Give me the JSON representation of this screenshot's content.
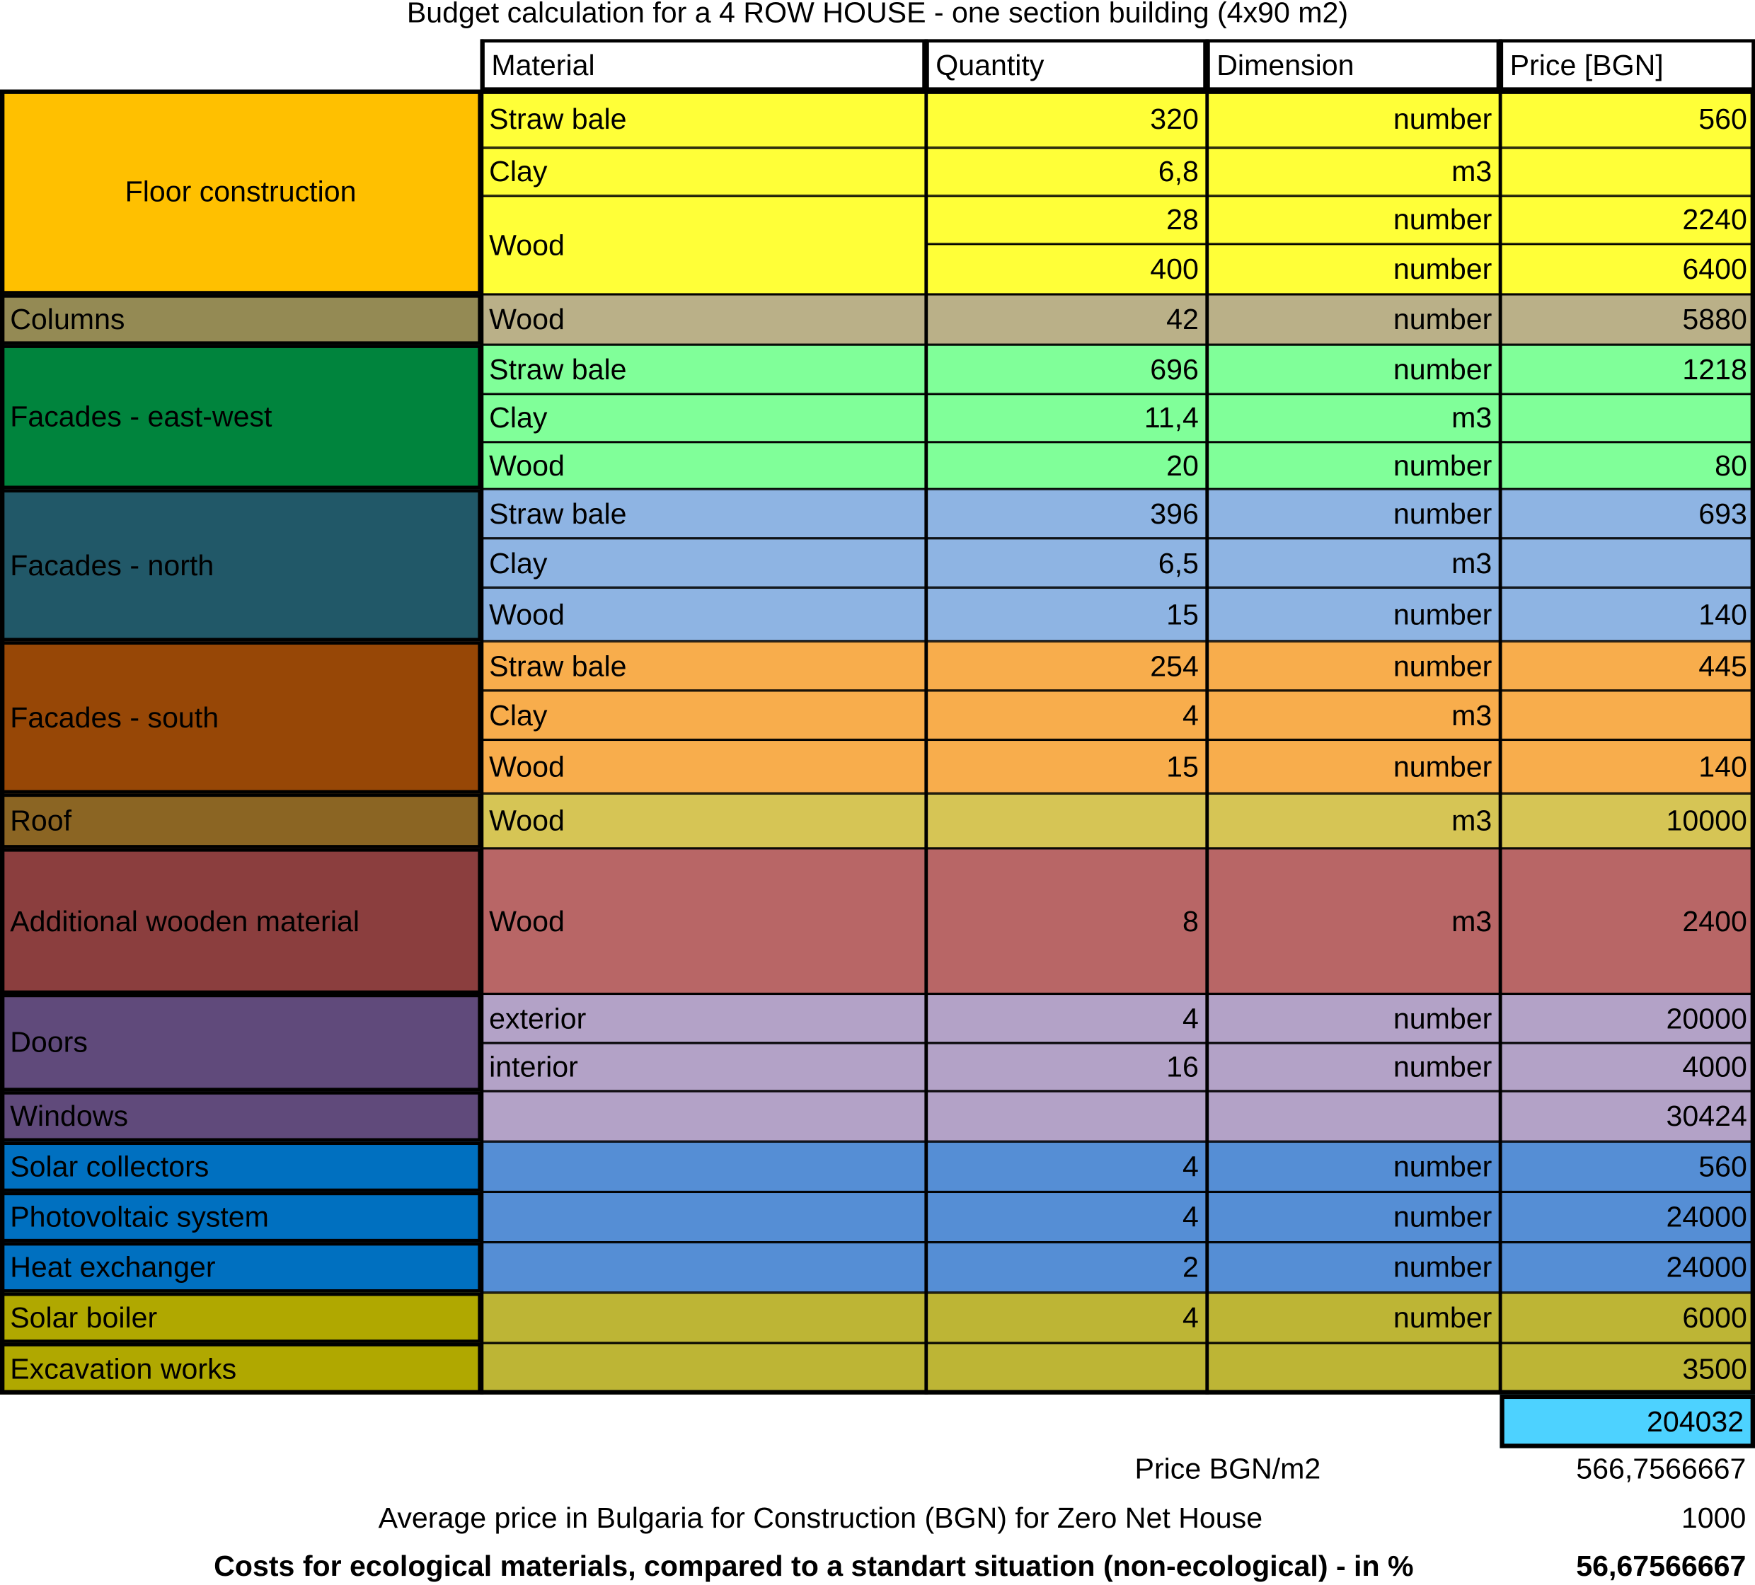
{
  "title": "Budget calculation for a 4 ROW HOUSE - one section building (4x90 m2)",
  "headers": [
    "Material",
    "Quantity",
    "Dimension",
    "Price [BGN]"
  ],
  "groups": [
    {
      "category": "Floor construction",
      "cat_color": "#FFC000",
      "row_color": "#FFFF38",
      "rows": [
        {
          "material": "Straw bale",
          "quantity": "320",
          "dimension": "number",
          "price": "560"
        },
        {
          "material": "Clay",
          "quantity": "6,8",
          "dimension": "m3",
          "price": ""
        },
        {
          "material": "Wood",
          "material_span": 2,
          "quantity": "28",
          "dimension": "number",
          "price": "2240"
        },
        {
          "material": null,
          "quantity": "400",
          "dimension": "number",
          "price": "6400"
        }
      ]
    },
    {
      "category": "Columns",
      "cat_color": "#948A54",
      "row_color": "#BAB088",
      "rows": [
        {
          "material": "Wood",
          "quantity": "42",
          "dimension": "number",
          "price": "5880"
        }
      ]
    },
    {
      "category": "Facades - east-west",
      "cat_color": "#00843D",
      "row_color": "#80FF99",
      "rows": [
        {
          "material": "Straw bale",
          "quantity": "696",
          "dimension": "number",
          "price": "1218"
        },
        {
          "material": "Clay",
          "quantity": "11,4",
          "dimension": "m3",
          "price": ""
        },
        {
          "material": "Wood",
          "quantity": "20",
          "dimension": "number",
          "price": "80"
        }
      ]
    },
    {
      "category": "Facades - north",
      "cat_color": "#215868",
      "row_color": "#8EB4E3",
      "rows": [
        {
          "material": "Straw bale",
          "quantity": "396",
          "dimension": "number",
          "price": "693"
        },
        {
          "material": "Clay",
          "quantity": "6,5",
          "dimension": "m3",
          "price": ""
        },
        {
          "material": "Wood",
          "quantity": "15",
          "dimension": "number",
          "price": "140"
        }
      ]
    },
    {
      "category": "Facades - south",
      "cat_color": "#974706",
      "row_color": "#F8AD4C",
      "rows": [
        {
          "material": "Straw bale",
          "quantity": "254",
          "dimension": "number",
          "price": "445"
        },
        {
          "material": "Clay",
          "quantity": "4",
          "dimension": "m3",
          "price": ""
        },
        {
          "material": "Wood",
          "quantity": "15",
          "dimension": "number",
          "price": "140"
        }
      ]
    },
    {
      "category": "Roof",
      "cat_color": "#8B6523",
      "row_color": "#D6C555",
      "rows": [
        {
          "material": "Wood",
          "quantity": "",
          "dimension": "m3",
          "price": "10000"
        }
      ]
    },
    {
      "category": "Additional wooden material",
      "cat_color": "#8B3E3E",
      "row_color": "#B86666",
      "rows": [
        {
          "material": "Wood",
          "quantity": "8",
          "dimension": "m3",
          "price": "2400"
        }
      ]
    },
    {
      "category": "Doors",
      "cat_color": "#604A7B",
      "row_color": "#B3A2C7",
      "rows": [
        {
          "material": "exterior",
          "quantity": "4",
          "dimension": "number",
          "price": "20000"
        },
        {
          "material": "interior",
          "quantity": "16",
          "dimension": "number",
          "price": "4000"
        }
      ]
    },
    {
      "category": "Windows",
      "cat_color": "#604A7B",
      "row_color": "#B3A2C7",
      "rows": [
        {
          "material": "",
          "quantity": "",
          "dimension": "",
          "price": "30424"
        }
      ]
    },
    {
      "category": "Solar collectors",
      "cat_color": "#0070C0",
      "row_color": "#558ED5",
      "rows": [
        {
          "material": "",
          "quantity": "4",
          "dimension": "number",
          "price": "560"
        }
      ]
    },
    {
      "category": "Photovoltaic system",
      "cat_color": "#0070C0",
      "row_color": "#558ED5",
      "rows": [
        {
          "material": "",
          "quantity": "4",
          "dimension": "number",
          "price": "24000"
        }
      ]
    },
    {
      "category": "Heat exchanger",
      "cat_color": "#0070C0",
      "row_color": "#558ED5",
      "rows": [
        {
          "material": "",
          "quantity": "2",
          "dimension": "number",
          "price": "24000"
        }
      ]
    },
    {
      "category": "Solar boiler",
      "cat_color": "#B0A800",
      "row_color": "#BDB535",
      "rows": [
        {
          "material": "",
          "quantity": "4",
          "dimension": "number",
          "price": "6000"
        }
      ]
    },
    {
      "category": "Excavation works",
      "cat_color": "#B0A800",
      "row_color": "#BDB535",
      "rows": [
        {
          "material": "",
          "quantity": "",
          "dimension": "",
          "price": "3500"
        }
      ]
    }
  ],
  "total": {
    "value": "204032",
    "color": "#4DD2FF"
  },
  "summary": [
    {
      "label": "Price BGN/m2",
      "value": "566,7566667"
    },
    {
      "label": "Average price in Bulgaria for Construction (BGN) for Zero Net House",
      "value": "1000"
    },
    {
      "label": "Costs for ecological materials, compared to a standart situation (non-ecological) - in %",
      "value": "56,67566667"
    }
  ]
}
